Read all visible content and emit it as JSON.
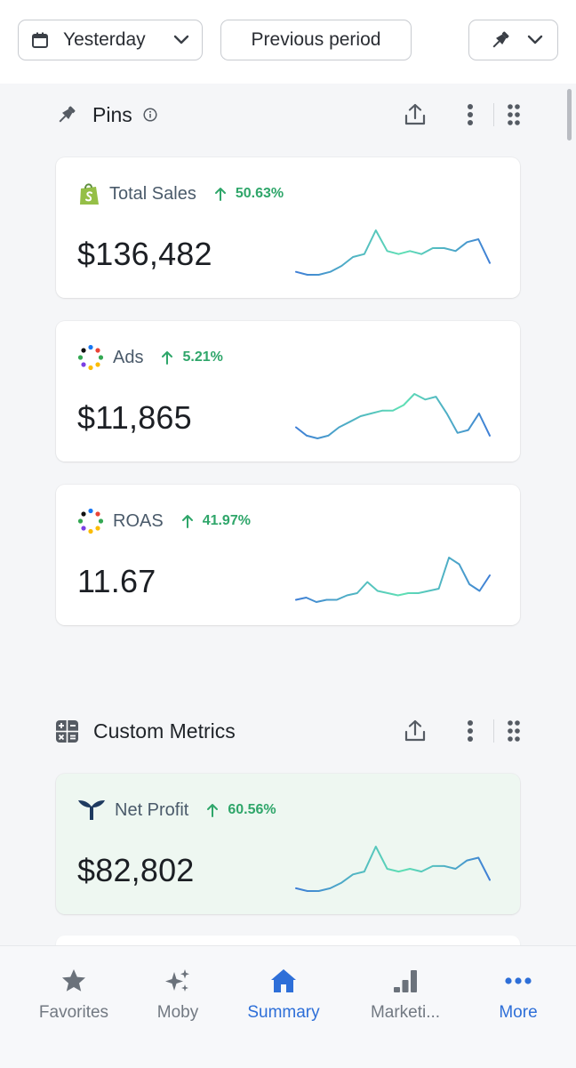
{
  "toolbar": {
    "date_range": "Yesterday",
    "compare": "Previous period"
  },
  "sections": [
    {
      "title": "Pins",
      "cards": [
        {
          "label": "Total Sales",
          "delta": "50.63%",
          "value": "$136,482",
          "icon": "shopify-icon"
        },
        {
          "label": "Ads",
          "delta": "5.21%",
          "value": "$11,865",
          "icon": "dots-ring-icon"
        },
        {
          "label": "ROAS",
          "delta": "41.97%",
          "value": "11.67",
          "icon": "dots-ring-icon"
        }
      ]
    },
    {
      "title": "Custom Metrics",
      "cards": [
        {
          "label": "Net Profit",
          "delta": "60.56%",
          "value": "$82,802",
          "icon": "triple-whale-icon"
        }
      ]
    }
  ],
  "tabs": [
    {
      "label": "Favorites",
      "icon": "star-icon"
    },
    {
      "label": "Moby",
      "icon": "sparkles-icon"
    },
    {
      "label": "Summary",
      "icon": "home-icon"
    },
    {
      "label": "Marketi...",
      "icon": "bar-chart-icon"
    },
    {
      "label": "More",
      "icon": "ellipsis-icon"
    }
  ],
  "sparklines": {
    "total_sales": [
      3,
      2,
      2,
      3,
      5,
      8,
      9,
      17,
      10,
      9,
      10,
      9,
      11,
      11,
      10,
      13,
      14,
      6
    ],
    "ads": [
      6,
      3,
      2,
      3,
      6,
      8,
      10,
      11,
      12,
      12,
      14,
      18,
      16,
      17,
      11,
      4,
      5,
      11,
      3
    ],
    "roas": [
      3,
      4,
      2,
      3,
      3,
      5,
      6,
      11,
      7,
      6,
      5,
      6,
      6,
      7,
      8,
      22,
      19,
      10,
      7,
      14
    ],
    "net_profit": [
      3,
      2,
      2,
      3,
      5,
      8,
      9,
      18,
      10,
      9,
      10,
      9,
      11,
      11,
      10,
      13,
      14,
      6
    ]
  },
  "colors": {
    "accent": "#2e6fd8",
    "positive": "#2fa66a",
    "spark_start": "#3f7fd6",
    "spark_end": "#5fe0b4"
  }
}
